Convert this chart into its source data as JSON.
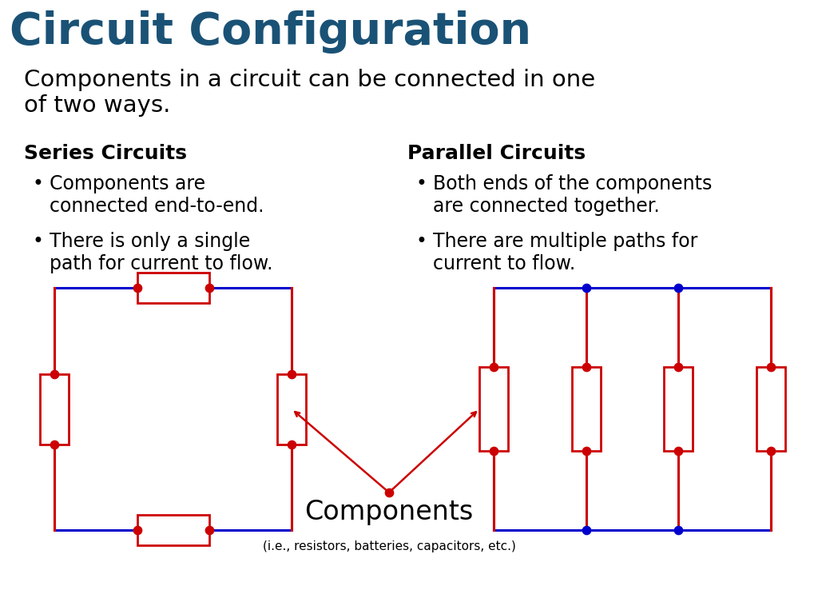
{
  "title": "Circuit Configuration",
  "title_color": "#1a5276",
  "subtitle": "Components in a circuit can be connected in one\nof two ways.",
  "subtitle_color": "#000000",
  "series_title": "Series Circuits",
  "parallel_title": "Parallel Circuits",
  "series_bullets": [
    "Components are\nconnected end-to-end.",
    "There is only a single\npath for current to flow."
  ],
  "parallel_bullets": [
    "Both ends of the components\nare connected together.",
    "There are multiple paths for\ncurrent to flow."
  ],
  "wire_color_blue": "#0000cc",
  "wire_color_red": "#cc0000",
  "dot_color_red": "#cc0000",
  "dot_color_blue": "#0000cc",
  "component_label": "Components",
  "component_sublabel": "(i.e., resistors, batteries, capacitors, etc.)",
  "bg_color": "#ffffff",
  "title_fontsize": 40,
  "subtitle_fontsize": 21,
  "heading_fontsize": 18,
  "bullet_fontsize": 17
}
